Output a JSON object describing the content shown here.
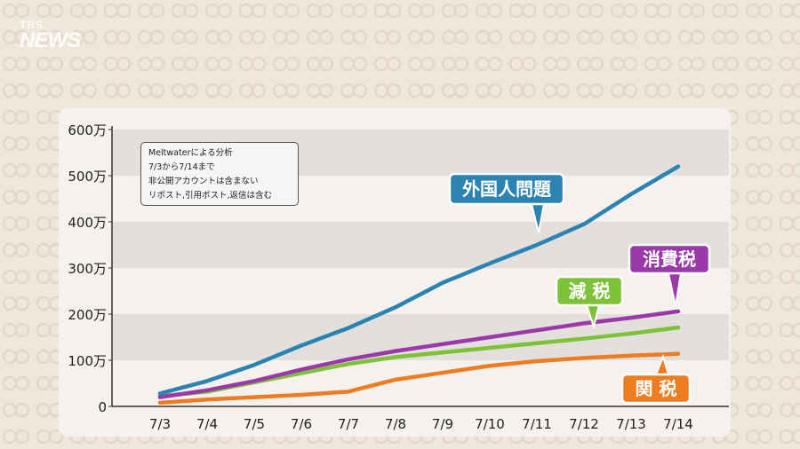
{
  "logo": {
    "line1": "TBS",
    "line2": "NEWS"
  },
  "note": {
    "lines": [
      "Meltwaterによる分析",
      "7/3から7/14まで",
      "非公開アカウントは含まない",
      "リポスト,引用ポスト,返信は含む"
    ]
  },
  "chart_data": {
    "type": "line",
    "categories": [
      "7/3",
      "7/4",
      "7/5",
      "7/6",
      "7/7",
      "7/8",
      "7/9",
      "7/10",
      "7/11",
      "7/12",
      "7/13",
      "7/14"
    ],
    "y_ticks": [
      0,
      100,
      200,
      300,
      400,
      500,
      600
    ],
    "y_tick_labels": [
      "0",
      "100万",
      "200万",
      "300万",
      "400万",
      "500万",
      "600万"
    ],
    "ylim": [
      0,
      600
    ],
    "y_unit": "万",
    "grid": "alternating bands",
    "series": [
      {
        "name": "外国人問題",
        "color": "#2a83b1",
        "label_bg": "#2a83b1",
        "values": [
          28,
          55,
          90,
          132,
          170,
          215,
          268,
          310,
          350,
          395,
          460,
          520
        ]
      },
      {
        "name": "消費税",
        "color": "#9a3aa8",
        "label_bg": "#9a3aa8",
        "values": [
          20,
          35,
          55,
          80,
          102,
          120,
          135,
          150,
          165,
          180,
          192,
          206
        ]
      },
      {
        "name": "減 税",
        "color": "#7ec23a",
        "label_bg": "#7ec23a",
        "values": [
          22,
          32,
          52,
          72,
          92,
          107,
          117,
          127,
          137,
          147,
          158,
          171
        ]
      },
      {
        "name": "関 税",
        "color": "#ee7d22",
        "label_bg": "#ee7d22",
        "values": [
          8,
          15,
          20,
          25,
          32,
          58,
          73,
          88,
          98,
          105,
          110,
          114
        ]
      }
    ]
  }
}
